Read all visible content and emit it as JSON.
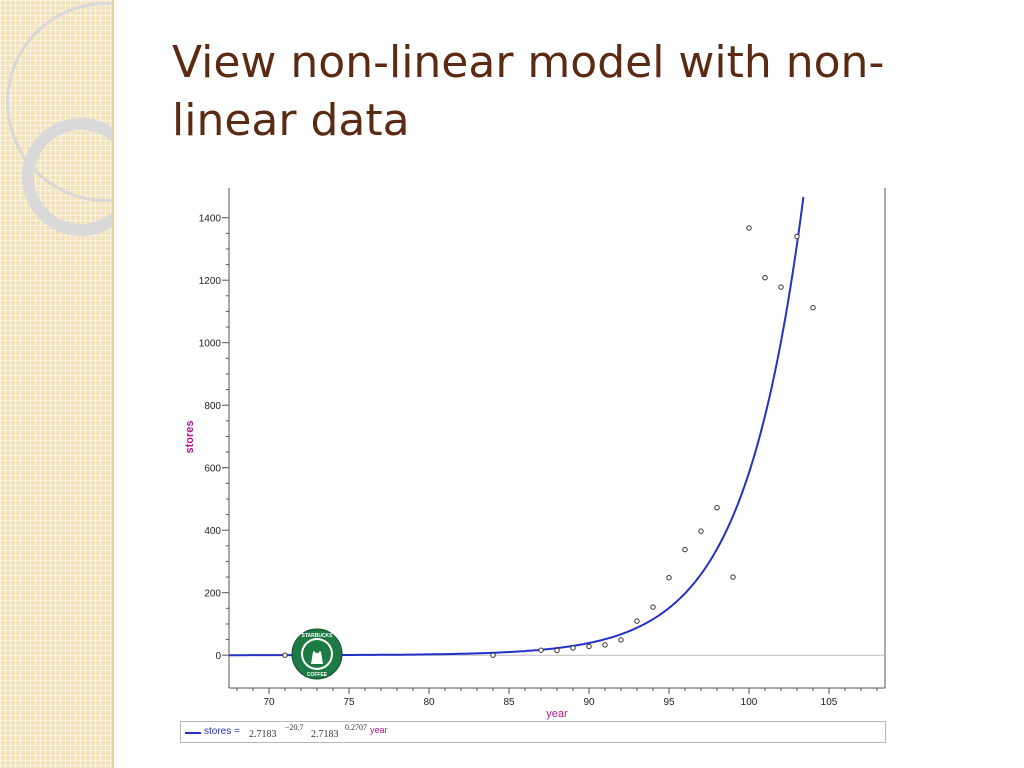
{
  "slide": {
    "title": "View non-linear model with non-linear data"
  },
  "logo": {
    "text_top": "STARBUCKS",
    "text_bottom": "COFFEE",
    "color": "#1e7a45"
  },
  "formula": {
    "legend_label": "stores =",
    "base1": "2.7183",
    "exp1": "−20.7",
    "base2": "2.7183",
    "exp2": "0.2707",
    "variable": "year"
  },
  "colors": {
    "title": "#5a2a12",
    "curve": "#2431c8",
    "axis_label": "#b01a8a",
    "strip": "#f3e3bd"
  },
  "chart_data": {
    "type": "scatter",
    "xlabel": "year",
    "ylabel": "stores",
    "xlim": [
      67.5,
      108.5
    ],
    "ylim": [
      -105,
      1495
    ],
    "x_ticks": [
      70,
      75,
      80,
      85,
      90,
      95,
      100,
      105
    ],
    "y_ticks": [
      0,
      200,
      400,
      600,
      800,
      1000,
      1200,
      1400
    ],
    "series": [
      {
        "kind": "points",
        "x": [
          71,
          84,
          87,
          88,
          89,
          90,
          91,
          92,
          93,
          94,
          95,
          96,
          97,
          98,
          99,
          100,
          101,
          102,
          103,
          104
        ],
        "y": [
          0,
          0,
          16,
          15,
          23,
          28,
          33,
          49,
          109,
          154,
          248,
          338,
          397,
          472,
          250,
          1367,
          1208,
          1178,
          1340,
          1112
        ]
      },
      {
        "kind": "model",
        "name": "stores",
        "equation": "stores = 2.7183^(−20.7) · 2.7183^(0.2707·year)",
        "a_exp": -20.7,
        "b": 0.2707
      }
    ],
    "grid": false
  }
}
